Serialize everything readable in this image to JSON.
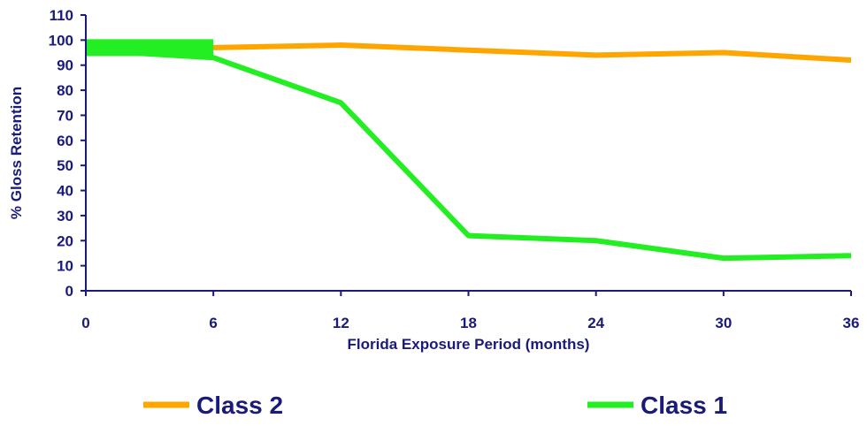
{
  "chart_data": {
    "type": "line",
    "title": "",
    "xlabel": "Florida Exposure Period (months)",
    "ylabel": "% Gloss Retention",
    "x": [
      0,
      6,
      12,
      18,
      24,
      30,
      36
    ],
    "xlim": [
      0,
      36
    ],
    "ylim": [
      0,
      110
    ],
    "xticks": [
      0,
      6,
      12,
      18,
      24,
      30,
      36
    ],
    "yticks": [
      0,
      10,
      20,
      30,
      40,
      50,
      60,
      70,
      80,
      90,
      100,
      110
    ],
    "grid": false,
    "legend_position": "bottom",
    "series": [
      {
        "name": "Class 2",
        "color": "#FFA500",
        "x": [
          0,
          6,
          12,
          18,
          24,
          30,
          36
        ],
        "values": [
          97,
          97,
          98,
          96,
          94,
          95,
          92
        ]
      },
      {
        "name": "Class 1",
        "color": "#22EE22",
        "x": [
          0,
          6,
          12,
          18,
          24,
          30,
          36
        ],
        "values": [
          96,
          93,
          75,
          22,
          20,
          13,
          14
        ]
      }
    ],
    "axis_color": "#1a1a7a"
  }
}
